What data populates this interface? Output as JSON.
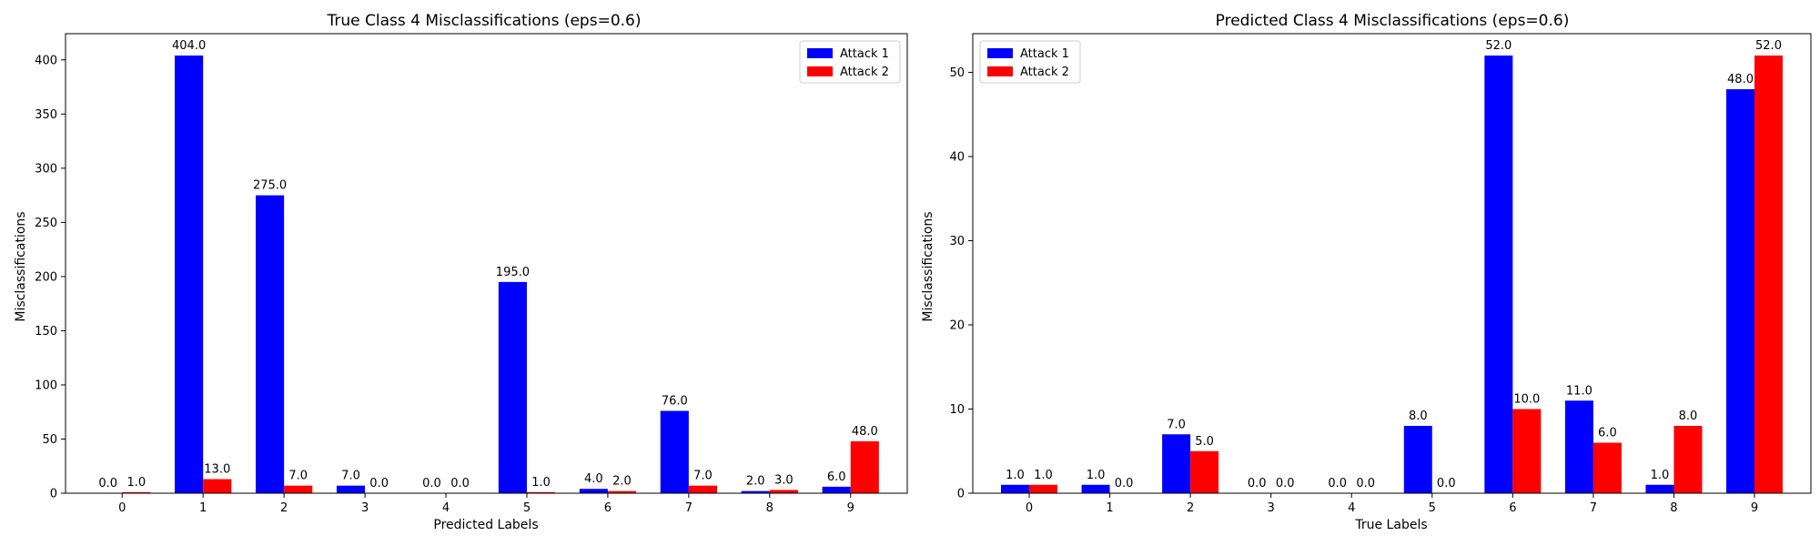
{
  "chart_data": [
    {
      "type": "bar",
      "title": "True Class 4 Misclassifications (eps=0.6)",
      "xlabel": "Predicted Labels",
      "ylabel": "Misclassifications",
      "categories": [
        "0",
        "1",
        "2",
        "3",
        "4",
        "5",
        "6",
        "7",
        "8",
        "9"
      ],
      "ylim": [
        0,
        424.2
      ],
      "yticks": [
        0,
        50,
        100,
        150,
        200,
        250,
        300,
        350,
        400
      ],
      "legend_position": "top-right",
      "series": [
        {
          "name": "Attack 1",
          "color": "#0000ff",
          "values": [
            0.0,
            404.0,
            275.0,
            7.0,
            0.0,
            195.0,
            4.0,
            76.0,
            2.0,
            6.0
          ],
          "labels": [
            "0.0",
            "404.0",
            "275.0",
            "7.0",
            "0.0",
            "195.0",
            "4.0",
            "76.0",
            "2.0",
            "6.0"
          ]
        },
        {
          "name": "Attack 2",
          "color": "#ff0000",
          "values": [
            1.0,
            13.0,
            7.0,
            0.0,
            0.0,
            1.0,
            2.0,
            7.0,
            3.0,
            48.0
          ],
          "labels": [
            "1.0",
            "13.0",
            "7.0",
            "0.0",
            "0.0",
            "1.0",
            "2.0",
            "7.0",
            "3.0",
            "48.0"
          ]
        }
      ]
    },
    {
      "type": "bar",
      "title": "Predicted Class 4 Misclassifications (eps=0.6)",
      "xlabel": "True Labels",
      "ylabel": "Misclassifications",
      "categories": [
        "0",
        "1",
        "2",
        "3",
        "4",
        "5",
        "6",
        "7",
        "8",
        "9"
      ],
      "ylim": [
        0,
        54.6
      ],
      "yticks": [
        0,
        10,
        20,
        30,
        40,
        50
      ],
      "legend_position": "top-left",
      "series": [
        {
          "name": "Attack 1",
          "color": "#0000ff",
          "values": [
            1.0,
            1.0,
            7.0,
            0.0,
            0.0,
            8.0,
            52.0,
            11.0,
            1.0,
            48.0
          ],
          "labels": [
            "1.0",
            "1.0",
            "7.0",
            "0.0",
            "0.0",
            "8.0",
            "52.0",
            "11.0",
            "1.0",
            "48.0"
          ]
        },
        {
          "name": "Attack 2",
          "color": "#ff0000",
          "values": [
            1.0,
            0.0,
            5.0,
            0.0,
            0.0,
            0.0,
            10.0,
            6.0,
            8.0,
            52.0
          ],
          "labels": [
            "1.0",
            "0.0",
            "5.0",
            "0.0",
            "0.0",
            "0.0",
            "10.0",
            "6.0",
            "8.0",
            "52.0"
          ]
        }
      ]
    }
  ]
}
